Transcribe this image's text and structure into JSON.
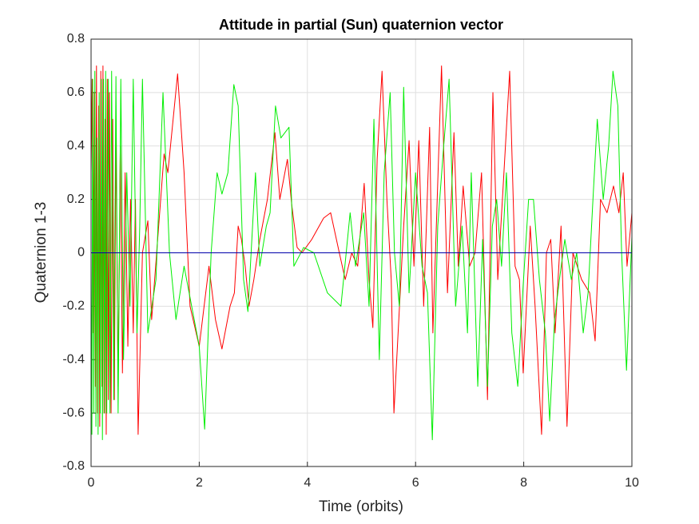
{
  "chart_data": {
    "type": "line",
    "title": "Attitude in partial (Sun) quaternion vector",
    "x_label": "Time (orbits)",
    "y_label": "Quaternion 1-3",
    "xlim": [
      0,
      10
    ],
    "xticks": [
      0,
      2,
      4,
      6,
      8,
      10
    ],
    "ylim": [
      -0.8,
      0.8
    ],
    "yticks": [
      -0.8,
      -0.6,
      -0.4,
      -0.2,
      0,
      0.2,
      0.4,
      0.6,
      0.8
    ],
    "grid": true,
    "series": [
      {
        "color": "#ff0000",
        "x": [
          0,
          0.02,
          0.04,
          0.06,
          0.08,
          0.1,
          0.12,
          0.14,
          0.16,
          0.18,
          0.2,
          0.22,
          0.24,
          0.26,
          0.28,
          0.3,
          0.32,
          0.34,
          0.37,
          0.4,
          0.43,
          0.46,
          0.5,
          0.54,
          0.58,
          0.63,
          0.68,
          0.73,
          0.78,
          0.82,
          0.87,
          0.95,
          1.05,
          1.12,
          1.35,
          1.42,
          1.6,
          1.72,
          1.83,
          2.0,
          2.18,
          2.3,
          2.42,
          2.57,
          2.65,
          2.72,
          2.78,
          2.85,
          2.92,
          3.01,
          3.12,
          3.26,
          3.4,
          3.49,
          3.63,
          3.71,
          3.81,
          3.9,
          4.08,
          4.3,
          4.43,
          4.59,
          4.7,
          4.82,
          4.93,
          5.05,
          5.14,
          5.21,
          5.29,
          5.38,
          5.47,
          5.55,
          5.6,
          5.78,
          5.88,
          5.97,
          6.06,
          6.15,
          6.26,
          6.32,
          6.48,
          6.59,
          6.71,
          6.79,
          6.88,
          7.0,
          7.1,
          7.22,
          7.33,
          7.43,
          7.52,
          7.62,
          7.74,
          7.84,
          7.92,
          7.99,
          8.12,
          8.21,
          8.33,
          8.42,
          8.5,
          8.58,
          8.69,
          8.8,
          8.91,
          9.07,
          9.22,
          9.32,
          9.42,
          9.54,
          9.66,
          9.76,
          9.84,
          9.91,
          10
        ],
        "values": [
          0.3,
          0.65,
          -0.3,
          0.6,
          -0.5,
          0.7,
          -0.6,
          0.55,
          -0.65,
          0.68,
          -0.5,
          0.7,
          -0.6,
          0.5,
          -0.68,
          0.65,
          -0.55,
          0.6,
          -0.6,
          0.5,
          -0.55,
          0.45,
          -0.5,
          0.4,
          -0.45,
          0.3,
          -0.35,
          0.2,
          -0.3,
          0.2,
          -0.68,
          0.0,
          0.12,
          -0.25,
          0.37,
          0.3,
          0.67,
          0.3,
          -0.2,
          -0.35,
          -0.05,
          -0.25,
          -0.36,
          -0.2,
          -0.15,
          0.1,
          0.05,
          -0.05,
          -0.2,
          -0.1,
          0.05,
          0.2,
          0.45,
          0.2,
          0.35,
          0.18,
          0.02,
          0.0,
          0.05,
          0.13,
          0.15,
          0.0,
          -0.1,
          0.0,
          -0.05,
          0.26,
          -0.1,
          -0.28,
          0.35,
          0.68,
          0.2,
          -0.1,
          -0.6,
          0.1,
          0.42,
          -0.05,
          0.42,
          -0.2,
          0.47,
          -0.3,
          0.7,
          -0.15,
          0.45,
          -0.05,
          0.25,
          -0.05,
          0.0,
          0.3,
          -0.55,
          0.6,
          -0.1,
          0.25,
          0.68,
          -0.05,
          -0.1,
          -0.45,
          0.1,
          -0.2,
          -0.68,
          0.0,
          0.05,
          -0.3,
          0.1,
          -0.65,
          0.0,
          -0.1,
          -0.15,
          -0.33,
          0.2,
          0.15,
          0.25,
          0.15,
          0.3,
          -0.05,
          0.15
        ]
      },
      {
        "color": "#00ee00",
        "x": [
          0,
          0.015,
          0.03,
          0.05,
          0.07,
          0.09,
          0.11,
          0.13,
          0.15,
          0.17,
          0.19,
          0.21,
          0.23,
          0.25,
          0.27,
          0.29,
          0.32,
          0.35,
          0.38,
          0.42,
          0.46,
          0.5,
          0.55,
          0.6,
          0.66,
          0.72,
          0.78,
          0.85,
          0.9,
          0.95,
          1.05,
          1.2,
          1.33,
          1.45,
          1.57,
          1.72,
          1.86,
          2.0,
          2.1,
          2.22,
          2.33,
          2.42,
          2.53,
          2.64,
          2.72,
          2.82,
          2.9,
          3.04,
          3.12,
          3.24,
          3.31,
          3.41,
          3.51,
          3.66,
          3.75,
          3.93,
          4.12,
          4.37,
          4.62,
          4.79,
          4.89,
          5.04,
          5.14,
          5.23,
          5.33,
          5.42,
          5.53,
          5.61,
          5.7,
          5.78,
          5.88,
          6.0,
          6.12,
          6.22,
          6.31,
          6.41,
          6.52,
          6.62,
          6.74,
          6.86,
          6.96,
          7.03,
          7.15,
          7.24,
          7.33,
          7.42,
          7.5,
          7.59,
          7.68,
          7.78,
          7.89,
          7.99,
          8.09,
          8.18,
          8.29,
          8.4,
          8.48,
          8.57,
          8.66,
          8.76,
          8.88,
          8.98,
          9.1,
          9.19,
          9.28,
          9.36,
          9.47,
          9.57,
          9.65,
          9.74,
          9.81,
          9.9,
          10
        ],
        "values": [
          0.0,
          -0.68,
          0.65,
          -0.6,
          0.68,
          -0.65,
          0.43,
          -0.68,
          0.6,
          -0.6,
          0.65,
          -0.7,
          0.65,
          -0.6,
          0.68,
          -0.6,
          0.65,
          -0.6,
          0.68,
          -0.55,
          0.66,
          -0.6,
          0.65,
          -0.4,
          0.3,
          -0.2,
          0.65,
          -0.3,
          0.1,
          0.65,
          -0.3,
          -0.1,
          0.6,
          0.0,
          -0.25,
          -0.05,
          -0.2,
          -0.35,
          -0.66,
          0.0,
          0.3,
          0.22,
          0.3,
          0.63,
          0.55,
          -0.1,
          -0.22,
          0.3,
          -0.05,
          0.1,
          0.15,
          0.55,
          0.43,
          0.47,
          -0.05,
          0.02,
          0.0,
          -0.15,
          -0.2,
          0.15,
          -0.05,
          0.15,
          -0.2,
          0.5,
          -0.4,
          0.3,
          0.6,
          0.0,
          -0.2,
          0.62,
          -0.15,
          0.3,
          -0.05,
          -0.15,
          -0.7,
          0.1,
          0.4,
          0.65,
          -0.2,
          0.1,
          -0.3,
          0.3,
          -0.5,
          0.05,
          -0.5,
          0.1,
          0.2,
          -0.05,
          0.3,
          -0.3,
          -0.5,
          -0.12,
          0.2,
          0.2,
          -0.1,
          -0.3,
          -0.63,
          -0.25,
          -0.1,
          0.05,
          -0.1,
          0.0,
          -0.3,
          -0.15,
          0.2,
          0.5,
          0.2,
          0.4,
          0.68,
          0.55,
          0.0,
          -0.44,
          0.06
        ]
      },
      {
        "color": "#0000aa",
        "x": [
          0,
          10
        ],
        "values": [
          0,
          0
        ]
      }
    ]
  }
}
